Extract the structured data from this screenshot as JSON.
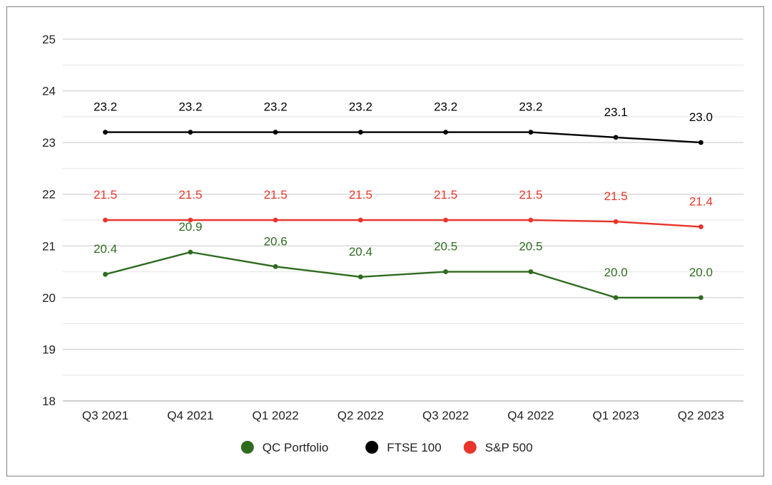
{
  "chart_data": {
    "type": "line",
    "title": "",
    "xlabel": "",
    "ylabel": "",
    "categories": [
      "Q3 2021",
      "Q4 2021",
      "Q1 2022",
      "Q2 2022",
      "Q3 2022",
      "Q4 2022",
      "Q1 2023",
      "Q2 2023"
    ],
    "ylim": [
      18,
      25
    ],
    "yticks": [
      "18",
      "19",
      "20",
      "21",
      "22",
      "23",
      "24",
      "25"
    ],
    "grid": true,
    "legend_position": "bottom",
    "series": [
      {
        "name": "QC Portfolio",
        "color": "#2e6b1f",
        "values": [
          20.45,
          20.88,
          20.6,
          20.4,
          20.5,
          20.5,
          20.0,
          20.0
        ],
        "labels": [
          "20.4",
          "20.9",
          "20.6",
          "20.4",
          "20.5",
          "20.5",
          "20.0",
          "20.0"
        ]
      },
      {
        "name": "FTSE 100",
        "color": "#000000",
        "values": [
          23.2,
          23.2,
          23.2,
          23.2,
          23.2,
          23.2,
          23.1,
          23.0
        ],
        "labels": [
          "23.2",
          "23.2",
          "23.2",
          "23.2",
          "23.2",
          "23.2",
          "23.1",
          "23.0"
        ]
      },
      {
        "name": "S&P 500",
        "color": "#e8352b",
        "values": [
          21.5,
          21.5,
          21.5,
          21.5,
          21.5,
          21.5,
          21.47,
          21.37
        ],
        "labels": [
          "21.5",
          "21.5",
          "21.5",
          "21.5",
          "21.5",
          "21.5",
          "21.5",
          "21.4"
        ]
      }
    ]
  }
}
